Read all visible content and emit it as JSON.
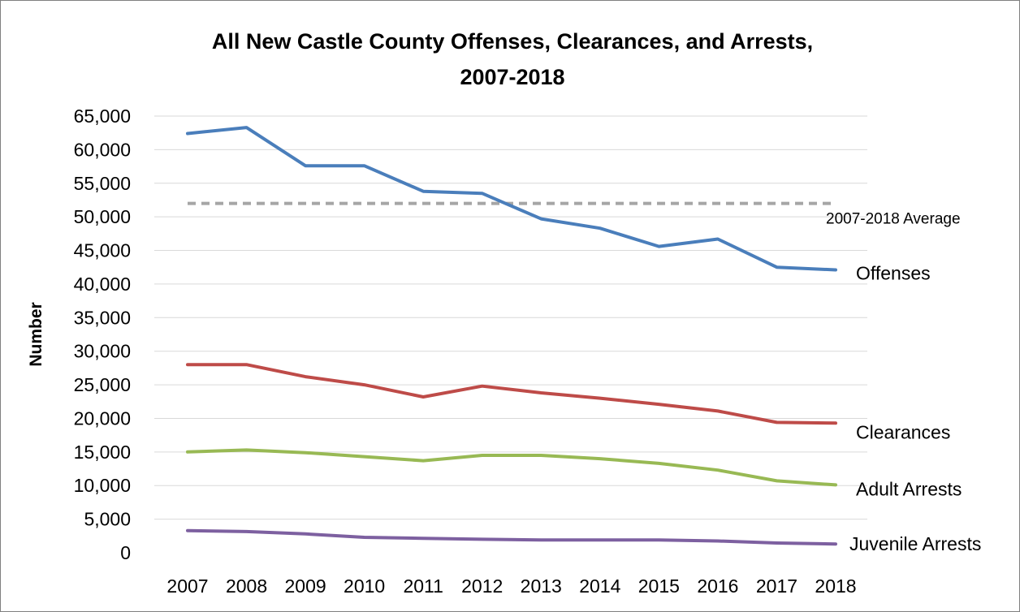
{
  "chart_data": {
    "type": "line",
    "title_line1": "All New Castle County Offenses, Clearances, and Arrests,",
    "title_line2": "2007-2018",
    "xlabel": "",
    "ylabel": "Number",
    "x": [
      "2007",
      "2008",
      "2009",
      "2010",
      "2011",
      "2012",
      "2013",
      "2014",
      "2015",
      "2016",
      "2017",
      "2018"
    ],
    "ylim": [
      0,
      65000
    ],
    "yticks": [
      0,
      5000,
      10000,
      15000,
      20000,
      25000,
      30000,
      35000,
      40000,
      45000,
      50000,
      55000,
      60000,
      65000
    ],
    "ytick_labels": [
      "0",
      "5,000",
      "10,000",
      "15,000",
      "20,000",
      "25,000",
      "30,000",
      "35,000",
      "40,000",
      "45,000",
      "50,000",
      "55,000",
      "60,000",
      "65,000"
    ],
    "grid": true,
    "series": [
      {
        "name": "Offenses",
        "color": "#4a7ebb",
        "values": [
          62400,
          63300,
          57600,
          57600,
          53800,
          53500,
          49700,
          48300,
          45600,
          46700,
          42500,
          42100
        ]
      },
      {
        "name": "Clearances",
        "color": "#be4b48",
        "values": [
          28000,
          28000,
          26200,
          25000,
          23200,
          24800,
          23800,
          23000,
          22100,
          21100,
          19400,
          19300
        ]
      },
      {
        "name": "Adult Arrests",
        "color": "#98b954",
        "values": [
          15000,
          15300,
          14900,
          14300,
          13700,
          14500,
          14500,
          14000,
          13300,
          12300,
          10700,
          10100
        ]
      },
      {
        "name": "Juvenile Arrests",
        "color": "#7d60a0",
        "values": [
          3300,
          3150,
          2800,
          2300,
          2150,
          2000,
          1900,
          1900,
          1900,
          1750,
          1450,
          1300
        ]
      }
    ],
    "average": {
      "label": "2007-2018 Average",
      "value": 52000,
      "color": "#a6a6a6"
    }
  }
}
